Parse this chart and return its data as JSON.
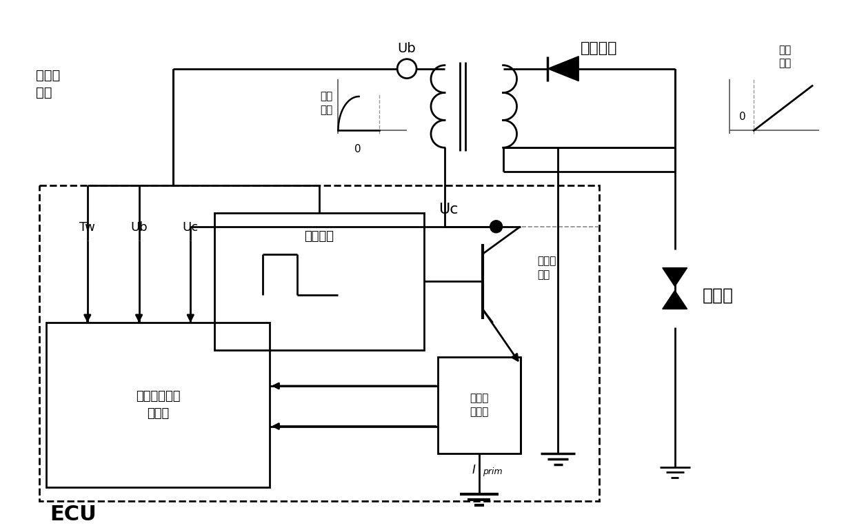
{
  "bg": "#ffffff",
  "lc": "#000000",
  "figw": 12.4,
  "figh": 7.69,
  "dpi": 100,
  "texts": {
    "fajianji": "发动机\n水温",
    "Ub_top": "Ub",
    "ignition_coil": "点火线圈",
    "primary_current": "初级\n电流",
    "zero1": "0",
    "discharge_current": "放电\n电流",
    "zero2": "0",
    "spark_plug": "火花塞",
    "Uc": "Uc",
    "control_module": "控制模块",
    "drive_switch": "驱动级\n开关",
    "Tw": "Tw",
    "Ub_in": "Ub",
    "Uc_in": "Uc",
    "data_module": "数据采集和运\n算模块",
    "primary_detection": "初级电\n流检测",
    "Iprim": "I",
    "Iprim_sub": "prim",
    "ECU": "ECU"
  }
}
